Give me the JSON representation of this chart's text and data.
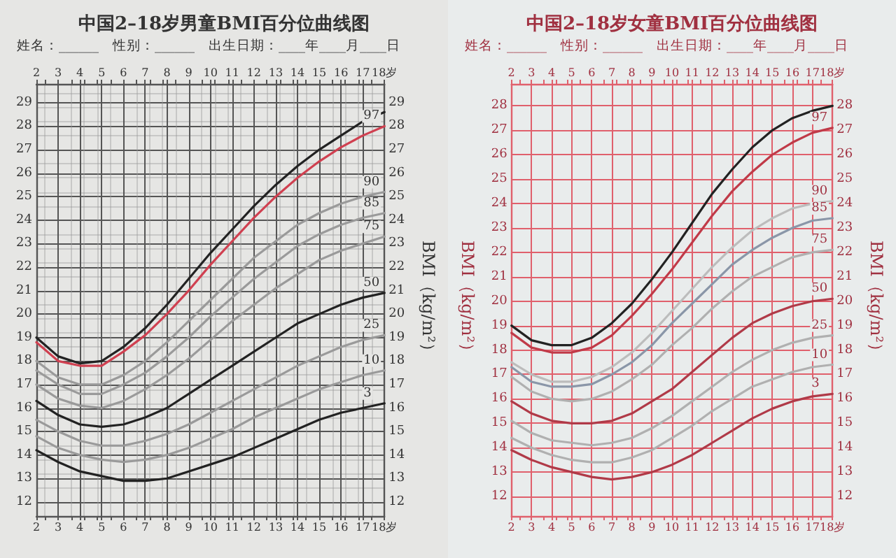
{
  "chart_data": [
    {
      "type": "line",
      "title": "中国2–18岁男童BMI百分位曲线图",
      "annotations": [
        "姓名：______　性别：______　出生日期：____年____月____日"
      ],
      "y2label": "BMI（kg/m²）",
      "x": [
        2,
        3,
        4,
        5,
        6,
        7,
        8,
        9,
        10,
        11,
        12,
        13,
        14,
        15,
        16,
        17,
        18
      ],
      "xlim": [
        2,
        18
      ],
      "xticks": [
        2,
        3,
        4,
        5,
        6,
        7,
        8,
        9,
        10,
        11,
        12,
        13,
        14,
        15,
        16,
        17,
        {
          "value": 18,
          "label": "18岁"
        }
      ],
      "x2lim": [
        2,
        18
      ],
      "x2ticks": [
        2,
        3,
        4,
        5,
        6,
        7,
        8,
        9,
        10,
        11,
        12,
        13,
        14,
        15,
        16,
        17,
        {
          "value": 18,
          "label": "18岁"
        }
      ],
      "ylim": [
        11.4,
        29.8
      ],
      "yticks": [
        12,
        13,
        14,
        15,
        16,
        17,
        18,
        19,
        20,
        21,
        22,
        23,
        24,
        25,
        26,
        27,
        28,
        29
      ],
      "y2lim": [
        11.4,
        29.8
      ],
      "y2ticks": [
        12,
        13,
        14,
        15,
        16,
        17,
        18,
        19,
        20,
        21,
        22,
        23,
        24,
        25,
        26,
        27,
        28,
        29
      ],
      "grid": true,
      "legend": false,
      "marker": "none",
      "line_style": "solid",
      "series": [
        {
          "color": "#222222",
          "values": [
            19.0,
            18.2,
            17.9,
            18.0,
            18.6,
            19.4,
            20.4,
            21.5,
            22.6,
            23.6,
            24.6,
            25.5,
            26.3,
            27.0,
            27.6,
            28.2,
            28.6
          ]
        },
        {
          "name": "97",
          "color": "#d04050",
          "values": [
            18.8,
            18.0,
            17.8,
            17.8,
            18.4,
            19.1,
            20.0,
            21.0,
            22.1,
            23.1,
            24.1,
            25.0,
            25.8,
            26.5,
            27.1,
            27.6,
            28.0
          ]
        },
        {
          "name": "90",
          "color": "#9a9a9a",
          "values": [
            18.0,
            17.3,
            17.0,
            17.0,
            17.4,
            18.0,
            18.8,
            19.7,
            20.6,
            21.5,
            22.4,
            23.1,
            23.8,
            24.3,
            24.7,
            25.0,
            25.2
          ]
        },
        {
          "name": "85",
          "color": "#9a9a9a",
          "values": [
            17.6,
            17.0,
            16.6,
            16.6,
            17.0,
            17.5,
            18.2,
            19.0,
            19.9,
            20.7,
            21.5,
            22.2,
            22.9,
            23.4,
            23.8,
            24.1,
            24.3
          ]
        },
        {
          "name": "75",
          "color": "#9a9a9a",
          "values": [
            17.0,
            16.4,
            16.1,
            16.0,
            16.3,
            16.8,
            17.4,
            18.1,
            18.9,
            19.7,
            20.4,
            21.1,
            21.7,
            22.3,
            22.7,
            23.0,
            23.3
          ]
        },
        {
          "name": "50",
          "color": "#222222",
          "values": [
            16.3,
            15.7,
            15.3,
            15.2,
            15.3,
            15.6,
            16.0,
            16.6,
            17.2,
            17.8,
            18.4,
            19.0,
            19.6,
            20.0,
            20.4,
            20.7,
            20.9
          ]
        },
        {
          "name": "25",
          "color": "#9a9a9a",
          "values": [
            15.5,
            15.0,
            14.6,
            14.4,
            14.4,
            14.6,
            14.9,
            15.3,
            15.8,
            16.3,
            16.8,
            17.3,
            17.8,
            18.2,
            18.6,
            18.9,
            19.1
          ]
        },
        {
          "name": "10",
          "color": "#9a9a9a",
          "values": [
            14.8,
            14.3,
            14.0,
            13.8,
            13.7,
            13.8,
            14.0,
            14.3,
            14.7,
            15.1,
            15.6,
            16.0,
            16.4,
            16.8,
            17.1,
            17.4,
            17.6
          ]
        },
        {
          "name": "3",
          "color": "#222222",
          "values": [
            14.2,
            13.7,
            13.3,
            13.1,
            12.9,
            12.9,
            13.0,
            13.3,
            13.6,
            13.9,
            14.3,
            14.7,
            15.1,
            15.5,
            15.8,
            16.0,
            16.2
          ]
        }
      ]
    },
    {
      "type": "line",
      "title": "中国2–18岁女童BMI百分位曲线图",
      "annotations": [
        "姓名：______　性别：______　出生日期：____年____月____日"
      ],
      "ylabel": "BMI（kg/m²）",
      "y2label": "BMI（kg/m²）",
      "x": [
        2,
        3,
        4,
        5,
        6,
        7,
        8,
        9,
        10,
        11,
        12,
        13,
        14,
        15,
        16,
        17,
        18
      ],
      "xlim": [
        2,
        18
      ],
      "xticks": [
        2,
        3,
        4,
        5,
        6,
        7,
        8,
        9,
        10,
        11,
        12,
        13,
        14,
        15,
        16,
        17,
        {
          "value": 18,
          "label": "18岁"
        }
      ],
      "x2lim": [
        2,
        18
      ],
      "x2ticks": [
        2,
        3,
        4,
        5,
        6,
        7,
        8,
        9,
        10,
        11,
        12,
        13,
        14,
        15,
        16,
        17,
        {
          "value": 18,
          "label": "18岁"
        }
      ],
      "ylim": [
        11.2,
        28.9
      ],
      "yticks": [
        12,
        13,
        14,
        15,
        16,
        17,
        18,
        19,
        20,
        21,
        22,
        23,
        24,
        25,
        26,
        27,
        28
      ],
      "y2lim": [
        11.2,
        28.9
      ],
      "y2ticks": [
        12,
        13,
        14,
        15,
        16,
        17,
        18,
        19,
        20,
        21,
        22,
        23,
        24,
        25,
        26,
        27,
        28
      ],
      "grid": true,
      "legend": false,
      "marker": "none",
      "line_style": "solid",
      "series": [
        {
          "color": "#222222",
          "values": [
            19.0,
            18.4,
            18.2,
            18.2,
            18.5,
            19.1,
            19.9,
            20.9,
            22.0,
            23.2,
            24.4,
            25.4,
            26.3,
            27.0,
            27.5,
            27.8,
            28.0
          ]
        },
        {
          "name": "97",
          "color": "#c03a48",
          "values": [
            18.7,
            18.1,
            17.9,
            17.9,
            18.1,
            18.6,
            19.4,
            20.3,
            21.3,
            22.4,
            23.5,
            24.5,
            25.3,
            26.0,
            26.5,
            26.9,
            27.1
          ]
        },
        {
          "name": "90",
          "color": "#bcbcbc",
          "values": [
            17.5,
            17.0,
            16.7,
            16.7,
            16.9,
            17.3,
            17.9,
            18.7,
            19.6,
            20.5,
            21.4,
            22.2,
            22.9,
            23.4,
            23.8,
            24.0,
            24.1
          ]
        },
        {
          "name": "85",
          "color": "#8a96a8",
          "values": [
            17.3,
            16.7,
            16.5,
            16.5,
            16.6,
            17.0,
            17.5,
            18.2,
            19.1,
            19.9,
            20.7,
            21.5,
            22.1,
            22.6,
            23.0,
            23.3,
            23.4
          ]
        },
        {
          "name": "75",
          "color": "#b0b0b0",
          "values": [
            16.9,
            16.3,
            16.0,
            15.9,
            16.0,
            16.3,
            16.8,
            17.4,
            18.2,
            18.9,
            19.7,
            20.4,
            21.0,
            21.4,
            21.8,
            22.0,
            22.1
          ]
        },
        {
          "name": "50",
          "color": "#b03a48",
          "values": [
            15.9,
            15.4,
            15.1,
            15.0,
            15.0,
            15.1,
            15.4,
            15.9,
            16.4,
            17.1,
            17.8,
            18.5,
            19.1,
            19.5,
            19.8,
            20.0,
            20.1
          ]
        },
        {
          "name": "25",
          "color": "#b0b0b0",
          "values": [
            15.1,
            14.6,
            14.3,
            14.2,
            14.1,
            14.2,
            14.4,
            14.8,
            15.3,
            15.9,
            16.5,
            17.1,
            17.6,
            18.0,
            18.3,
            18.5,
            18.6
          ]
        },
        {
          "name": "10",
          "color": "#b0b0b0",
          "values": [
            14.4,
            14.0,
            13.7,
            13.5,
            13.4,
            13.4,
            13.6,
            13.9,
            14.4,
            14.9,
            15.5,
            16.0,
            16.5,
            16.8,
            17.1,
            17.3,
            17.4
          ]
        },
        {
          "name": "3",
          "color": "#b03a48",
          "values": [
            13.9,
            13.5,
            13.2,
            13.0,
            12.8,
            12.7,
            12.8,
            13.0,
            13.3,
            13.7,
            14.2,
            14.7,
            15.2,
            15.6,
            15.9,
            16.1,
            16.2
          ]
        }
      ]
    }
  ]
}
